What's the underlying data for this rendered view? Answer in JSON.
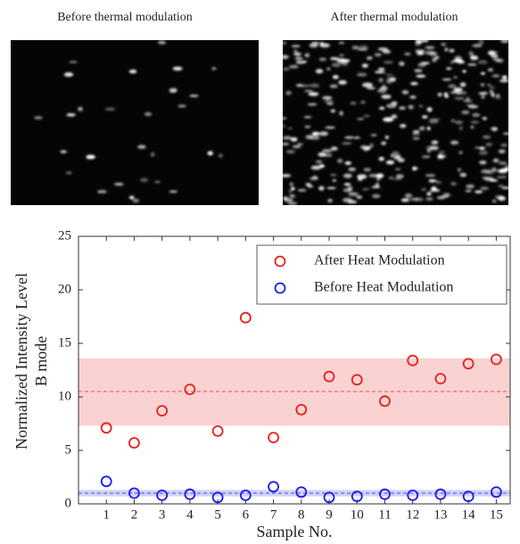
{
  "images": [
    {
      "title": "Before thermal modulation"
    },
    {
      "title": "After thermal modulation"
    }
  ],
  "chart_data": {
    "type": "scatter",
    "xlabel": "Sample No.",
    "ylabel": [
      "Normalized Intensity Level",
      "B mode"
    ],
    "x": [
      1,
      2,
      3,
      4,
      5,
      6,
      7,
      8,
      9,
      10,
      11,
      12,
      13,
      14,
      15
    ],
    "xlim": [
      0,
      15.5
    ],
    "xticks": [
      1,
      2,
      3,
      4,
      5,
      6,
      7,
      8,
      9,
      10,
      11,
      12,
      13,
      14,
      15
    ],
    "ylim": [
      0,
      25
    ],
    "yticks": [
      0,
      5,
      10,
      15,
      20,
      25
    ],
    "legend": "upper right",
    "series": [
      {
        "name": "After Heat Modulation",
        "color": "#e8201c",
        "values": [
          7.1,
          5.7,
          8.7,
          10.7,
          6.8,
          17.4,
          6.2,
          8.8,
          11.9,
          11.6,
          9.6,
          13.4,
          11.7,
          13.1,
          13.5
        ],
        "mean": 10.5,
        "band": [
          7.3,
          13.6
        ]
      },
      {
        "name": "Before Heat Modulation",
        "color": "#1c1ce8",
        "values": [
          2.1,
          1.0,
          0.8,
          0.9,
          0.6,
          0.8,
          1.6,
          1.1,
          0.6,
          0.7,
          0.9,
          0.8,
          0.9,
          0.7,
          1.1
        ],
        "mean": 1.0,
        "band": [
          0.7,
          1.3
        ]
      }
    ]
  }
}
